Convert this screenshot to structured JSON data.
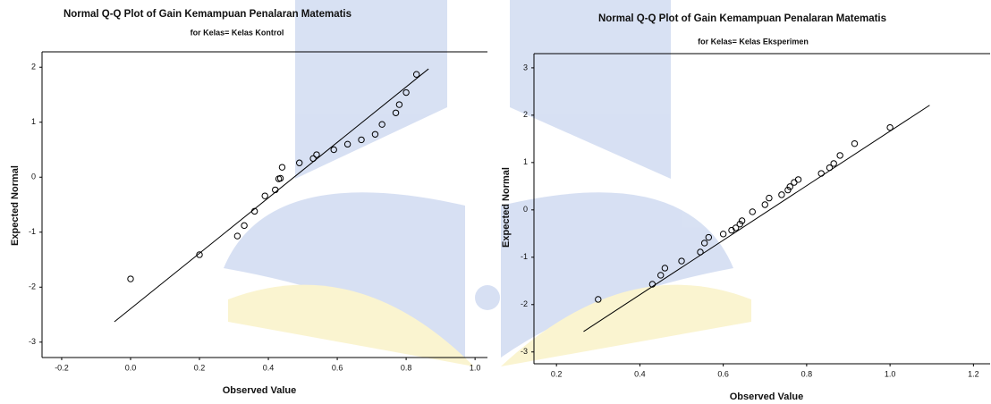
{
  "chart_data": [
    {
      "type": "scatter",
      "title": "Normal Q-Q Plot of Gain Kemampuan Penalaran Matematis",
      "subtitle": "for Kelas= Kelas Kontrol",
      "x_label": "Observed Value",
      "y_label": "Expected Normal",
      "color": "#000000",
      "x": [
        0.0,
        0.2,
        0.31,
        0.33,
        0.36,
        0.39,
        0.42,
        0.43,
        0.435,
        0.44,
        0.49,
        0.53,
        0.54,
        0.59,
        0.63,
        0.67,
        0.71,
        0.73,
        0.77,
        0.78,
        0.8,
        0.83
      ],
      "values": [
        -1.85,
        -1.41,
        -1.07,
        -0.88,
        -0.62,
        -0.34,
        -0.23,
        -0.03,
        -0.02,
        0.18,
        0.26,
        0.34,
        0.41,
        0.5,
        0.6,
        0.68,
        0.78,
        0.96,
        1.17,
        1.32,
        1.54,
        1.87
      ],
      "reference_line": {
        "x": [
          -0.047,
          0.865
        ],
        "values": [
          -2.63,
          1.97
        ]
      },
      "xlim": [
        -0.257,
        1.036
      ],
      "ylim": [
        -3.28,
        2.28
      ],
      "xticks": [
        -0.2,
        {
          "value": 0,
          "label": "0.0"
        },
        0.2,
        0.4,
        0.6,
        0.8,
        {
          "value": 1,
          "label": "1.0"
        }
      ],
      "yticks": [
        2,
        1,
        0,
        -1,
        -2,
        -3
      ]
    },
    {
      "type": "scatter",
      "title": "Normal Q-Q Plot of Gain Kemampuan Penalaran Matematis",
      "subtitle": "for Kelas= Kelas Eksperimen",
      "x_label": "Observed Value",
      "y_label": "Expected Normal",
      "color": "#000000",
      "x": [
        0.3,
        0.43,
        0.45,
        0.46,
        0.5,
        0.545,
        0.555,
        0.565,
        0.6,
        0.62,
        0.63,
        0.64,
        0.645,
        0.67,
        0.7,
        0.71,
        0.74,
        0.755,
        0.76,
        0.77,
        0.78,
        0.835,
        0.855,
        0.865,
        0.88,
        0.915,
        1.0
      ],
      "values": [
        -1.89,
        -1.57,
        -1.38,
        -1.23,
        -1.08,
        -0.89,
        -0.7,
        -0.58,
        -0.51,
        -0.43,
        -0.38,
        -0.3,
        -0.23,
        -0.04,
        0.11,
        0.25,
        0.32,
        0.42,
        0.49,
        0.58,
        0.64,
        0.77,
        0.89,
        0.98,
        1.15,
        1.4,
        1.74
      ],
      "reference_line": {
        "x": [
          0.265,
          1.095
        ],
        "values": [
          -2.57,
          2.21
        ]
      },
      "xlim": [
        0.146,
        1.24
      ],
      "ylim": [
        -3.25,
        3.3
      ],
      "xticks": [
        0.2,
        0.4,
        0.6,
        0.8,
        {
          "value": 1,
          "label": "1.0"
        },
        1.2
      ],
      "yticks": [
        3,
        2,
        1,
        0,
        -1,
        -2,
        -3
      ]
    }
  ]
}
